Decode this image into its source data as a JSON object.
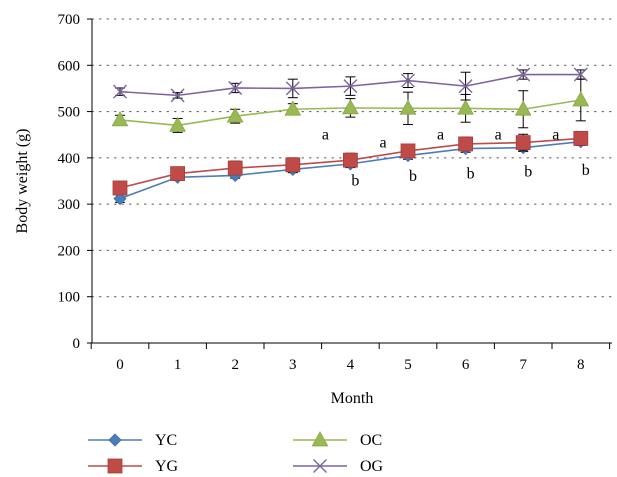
{
  "chart_data": {
    "type": "line",
    "title": "",
    "xlabel": "Month",
    "ylabel": "Body weight (g)",
    "x": [
      0,
      1,
      2,
      3,
      4,
      5,
      6,
      7,
      8
    ],
    "x_tick_labels": [
      "0",
      "1",
      "2",
      "3",
      "4",
      "5",
      "6",
      "7",
      "8"
    ],
    "ylim": [
      0,
      700
    ],
    "y_ticks": [
      0,
      100,
      200,
      300,
      400,
      500,
      600,
      700
    ],
    "y_tick_labels": [
      "0",
      "100",
      "200",
      "300",
      "400",
      "500",
      "600",
      "700"
    ],
    "grid": "horizontal dotted",
    "legend_position": "bottom",
    "series": [
      {
        "name": "YC",
        "color": "#4a7ebb",
        "marker": "diamond",
        "values": [
          312,
          358,
          362,
          375,
          387,
          405,
          420,
          422,
          435
        ],
        "errors": [
          8,
          6,
          6,
          7,
          8,
          8,
          8,
          8,
          8
        ]
      },
      {
        "name": "YG",
        "color": "#be4b48",
        "marker": "square",
        "values": [
          335,
          366,
          378,
          385,
          395,
          415,
          430,
          433,
          442
        ],
        "errors": [
          10,
          8,
          15,
          15,
          15,
          12,
          15,
          18,
          15
        ]
      },
      {
        "name": "OC",
        "color": "#98b954",
        "marker": "triangle",
        "values": [
          482,
          470,
          490,
          505,
          508,
          507,
          507,
          505,
          525
        ],
        "errors": [
          10,
          15,
          15,
          12,
          20,
          35,
          30,
          40,
          45
        ]
      },
      {
        "name": "OG",
        "color": "#7e649e",
        "marker": "x",
        "values": [
          543,
          535,
          551,
          550,
          555,
          567,
          555,
          580,
          580
        ],
        "errors": [
          8,
          6,
          10,
          20,
          20,
          15,
          30,
          10,
          10
        ]
      }
    ],
    "annotations": [
      {
        "text": "a",
        "x": 4,
        "y": 440
      },
      {
        "text": "a",
        "x": 5,
        "y": 422
      },
      {
        "text": "a",
        "x": 6,
        "y": 440
      },
      {
        "text": "a",
        "x": 7,
        "y": 440
      },
      {
        "text": "a",
        "x": 8,
        "y": 440
      },
      {
        "text": "b",
        "x": 4,
        "y": 340
      },
      {
        "text": "b",
        "x": 5,
        "y": 350
      },
      {
        "text": "b",
        "x": 6,
        "y": 355
      },
      {
        "text": "b",
        "x": 7,
        "y": 360
      },
      {
        "text": "b",
        "x": 8,
        "y": 363
      }
    ]
  }
}
